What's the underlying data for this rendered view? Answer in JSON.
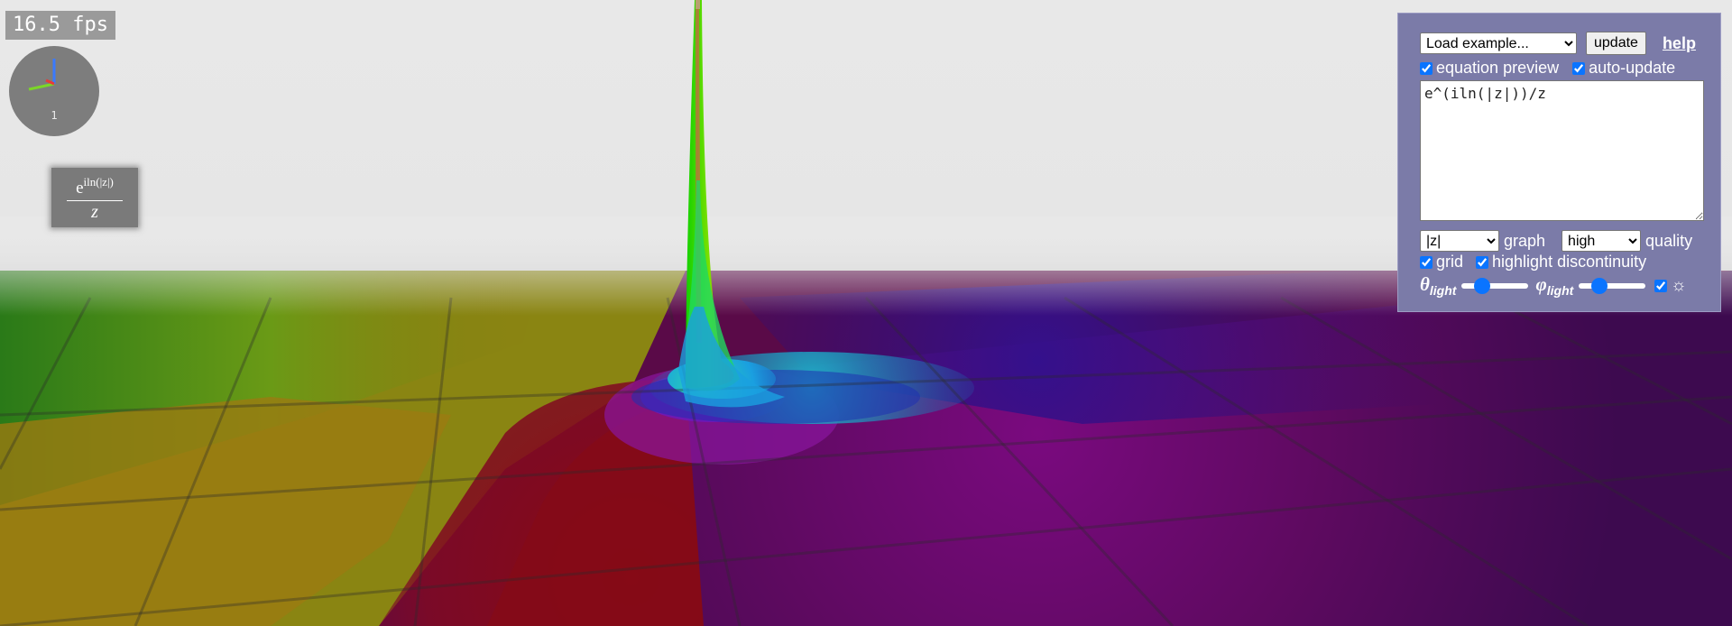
{
  "fps": {
    "text": "16.5 fps"
  },
  "gizmo": {
    "label": "1"
  },
  "equation_preview": {
    "numerator_base": "e",
    "numerator_exponent": "iln(|z|)",
    "denominator": "z"
  },
  "panel": {
    "example_select": {
      "value": "Load example...",
      "options": [
        "Load example..."
      ]
    },
    "update_label": "update",
    "help_label": "help",
    "equation_preview_label": "equation preview",
    "equation_preview_checked": true,
    "auto_update_label": "auto-update",
    "auto_update_checked": true,
    "equation": "e^(iln(|z|))/z",
    "graph_select": {
      "value": "|z|",
      "options": [
        "|z|"
      ]
    },
    "graph_label": "graph",
    "quality_select": {
      "value": "high",
      "options": [
        "high"
      ]
    },
    "quality_label": "quality",
    "grid_label": "grid",
    "grid_checked": true,
    "highlight_label": "highlight discontinuity",
    "highlight_checked": true,
    "theta_symbol": "θ",
    "phi_symbol": "φ",
    "light_subscript": "light",
    "theta_value": 0.25,
    "phi_value": 0.25,
    "sun_checked": true,
    "sun_icon": "sun-icon"
  },
  "colors": {
    "panel_bg": "#7b7ba8",
    "accent": "#0a74ff",
    "sky": "#e8e8e8"
  }
}
